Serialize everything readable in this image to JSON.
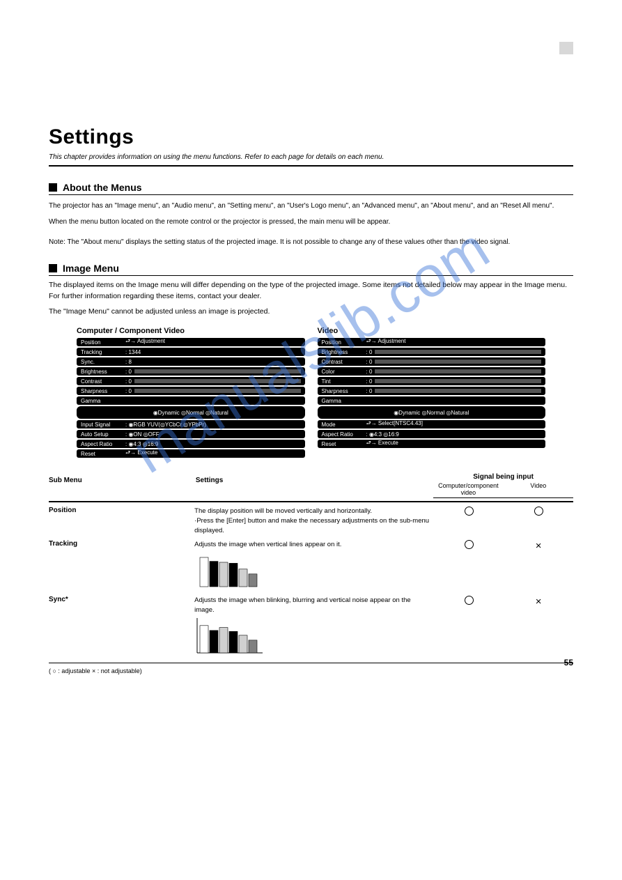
{
  "watermark": "manualslib.com",
  "main_title": "Settings",
  "subtitle": "This chapter provides information on using the menu functions.  Refer to each page for details on each menu.",
  "section_about": {
    "title": "About the Menus",
    "text_line1": "The projector has an \"Image menu\", an \"Audio menu\", an \"Setting menu\", an \"User's Logo menu\", an \"Advanced menu\", an \"About menu\", and an \"Reset All menu\".",
    "text_line2": "When the menu button located on the remote control or the projector is pressed, the main menu will be appear.",
    "note": "Note: The \"About menu\" displays the setting status of the projected image.  It is not possible to change any of these values other than the video signal."
  },
  "section_image": {
    "title": "Image Menu",
    "lead1": "The displayed items on the Image menu will differ depending on the type of the projected image.  Some items not detailed below may appear in the Image menu.  For further information regarding these items, contact your dealer.",
    "lead2": "The \"Image Menu\" cannot be adjusted unless an image is projected."
  },
  "panels": {
    "computer": {
      "title": "Computer / Component Video",
      "rows": [
        {
          "label": "Position",
          "value": "⮐→ Adjustment",
          "type": "text"
        },
        {
          "label": "Tracking",
          "value": ": 1344",
          "type": "text"
        },
        {
          "label": "Sync.",
          "value": ":   8",
          "type": "text"
        },
        {
          "label": "Brightness",
          "value": ":   0",
          "type": "slider"
        },
        {
          "label": "Contrast",
          "value": ":   0",
          "type": "slider"
        },
        {
          "label": "Sharpness",
          "value": ":   0",
          "type": "slider"
        },
        {
          "label": "Gamma",
          "value": "",
          "type": "head"
        },
        {
          "label": "",
          "value": "◉Dynamic   ◎Normal   ◎Natural",
          "type": "opts"
        },
        {
          "label": "Input Signal",
          "value": ": ◉RGB YUV(◎YCbCr ◎YPbPr)",
          "type": "text"
        },
        {
          "label": "Auto Setup",
          "value": ":       ◉ON   ◎OFF",
          "type": "text"
        },
        {
          "label": "Aspect Ratio",
          "value": ": ◉4:3   ◎16:9",
          "type": "text"
        },
        {
          "label": "Reset",
          "value": "⮐→ Execute",
          "type": "text"
        }
      ]
    },
    "video": {
      "title": "Video",
      "rows": [
        {
          "label": "Position",
          "value": "⮐→ Adjustment",
          "type": "text"
        },
        {
          "label": "Brightness",
          "value": ":   0",
          "type": "slider"
        },
        {
          "label": "Contrast",
          "value": ":   0",
          "type": "slider"
        },
        {
          "label": "Color",
          "value": ":   0",
          "type": "slider"
        },
        {
          "label": "Tint",
          "value": ":   0",
          "type": "slider"
        },
        {
          "label": "Sharpness",
          "value": ":   0",
          "type": "slider"
        },
        {
          "label": "Gamma",
          "value": "",
          "type": "head"
        },
        {
          "label": "",
          "value": "◉Dynamic   ◎Normal   ◎Natural",
          "type": "opts"
        },
        {
          "label": "Mode",
          "value": "⮐→ Select[NTSC4.43]",
          "type": "text"
        },
        {
          "label": "Aspect Ratio",
          "value": ": ◉4:3   ◎16:9",
          "type": "text"
        },
        {
          "label": "Reset",
          "value": "⮐→ Execute",
          "type": "text"
        }
      ]
    }
  },
  "table": {
    "head_menu": "Sub Menu",
    "head_set": "Settings",
    "head_sig": "Signal being input",
    "head_comp": "Computer/component video",
    "head_vid": "Video",
    "rows": [
      {
        "menu": "Position",
        "set": "The display position will be moved vertically and horizontally.\n·Press the [Enter] button and make the necessary adjustments on the sub-menu displayed.",
        "a": "circle",
        "b": "circle"
      },
      {
        "menu": "Tracking",
        "set": "Adjusts the image when vertical lines appear on it.",
        "a": "circle",
        "b": "cross",
        "chart": {
          "values": [
            60,
            52,
            50,
            48,
            36,
            26
          ],
          "colors": [
            "#ffffff",
            "#000000",
            "#d0d0d0",
            "#000000",
            "#d0d0d0",
            "#808080"
          ]
        }
      },
      {
        "menu": "Sync*",
        "set": "Adjusts the image when blinking, blurring and vertical noise appear on the image.",
        "a": "circle",
        "b": "cross",
        "axes": true,
        "chart": {
          "values": [
            56,
            46,
            52,
            44,
            36,
            26
          ],
          "colors": [
            "#ffffff",
            "#000000",
            "#d0d0d0",
            "#000000",
            "#d0d0d0",
            "#808080"
          ]
        }
      }
    ],
    "legend": "( ○ : adjustable    × : not adjustable)"
  },
  "page_number": "55"
}
